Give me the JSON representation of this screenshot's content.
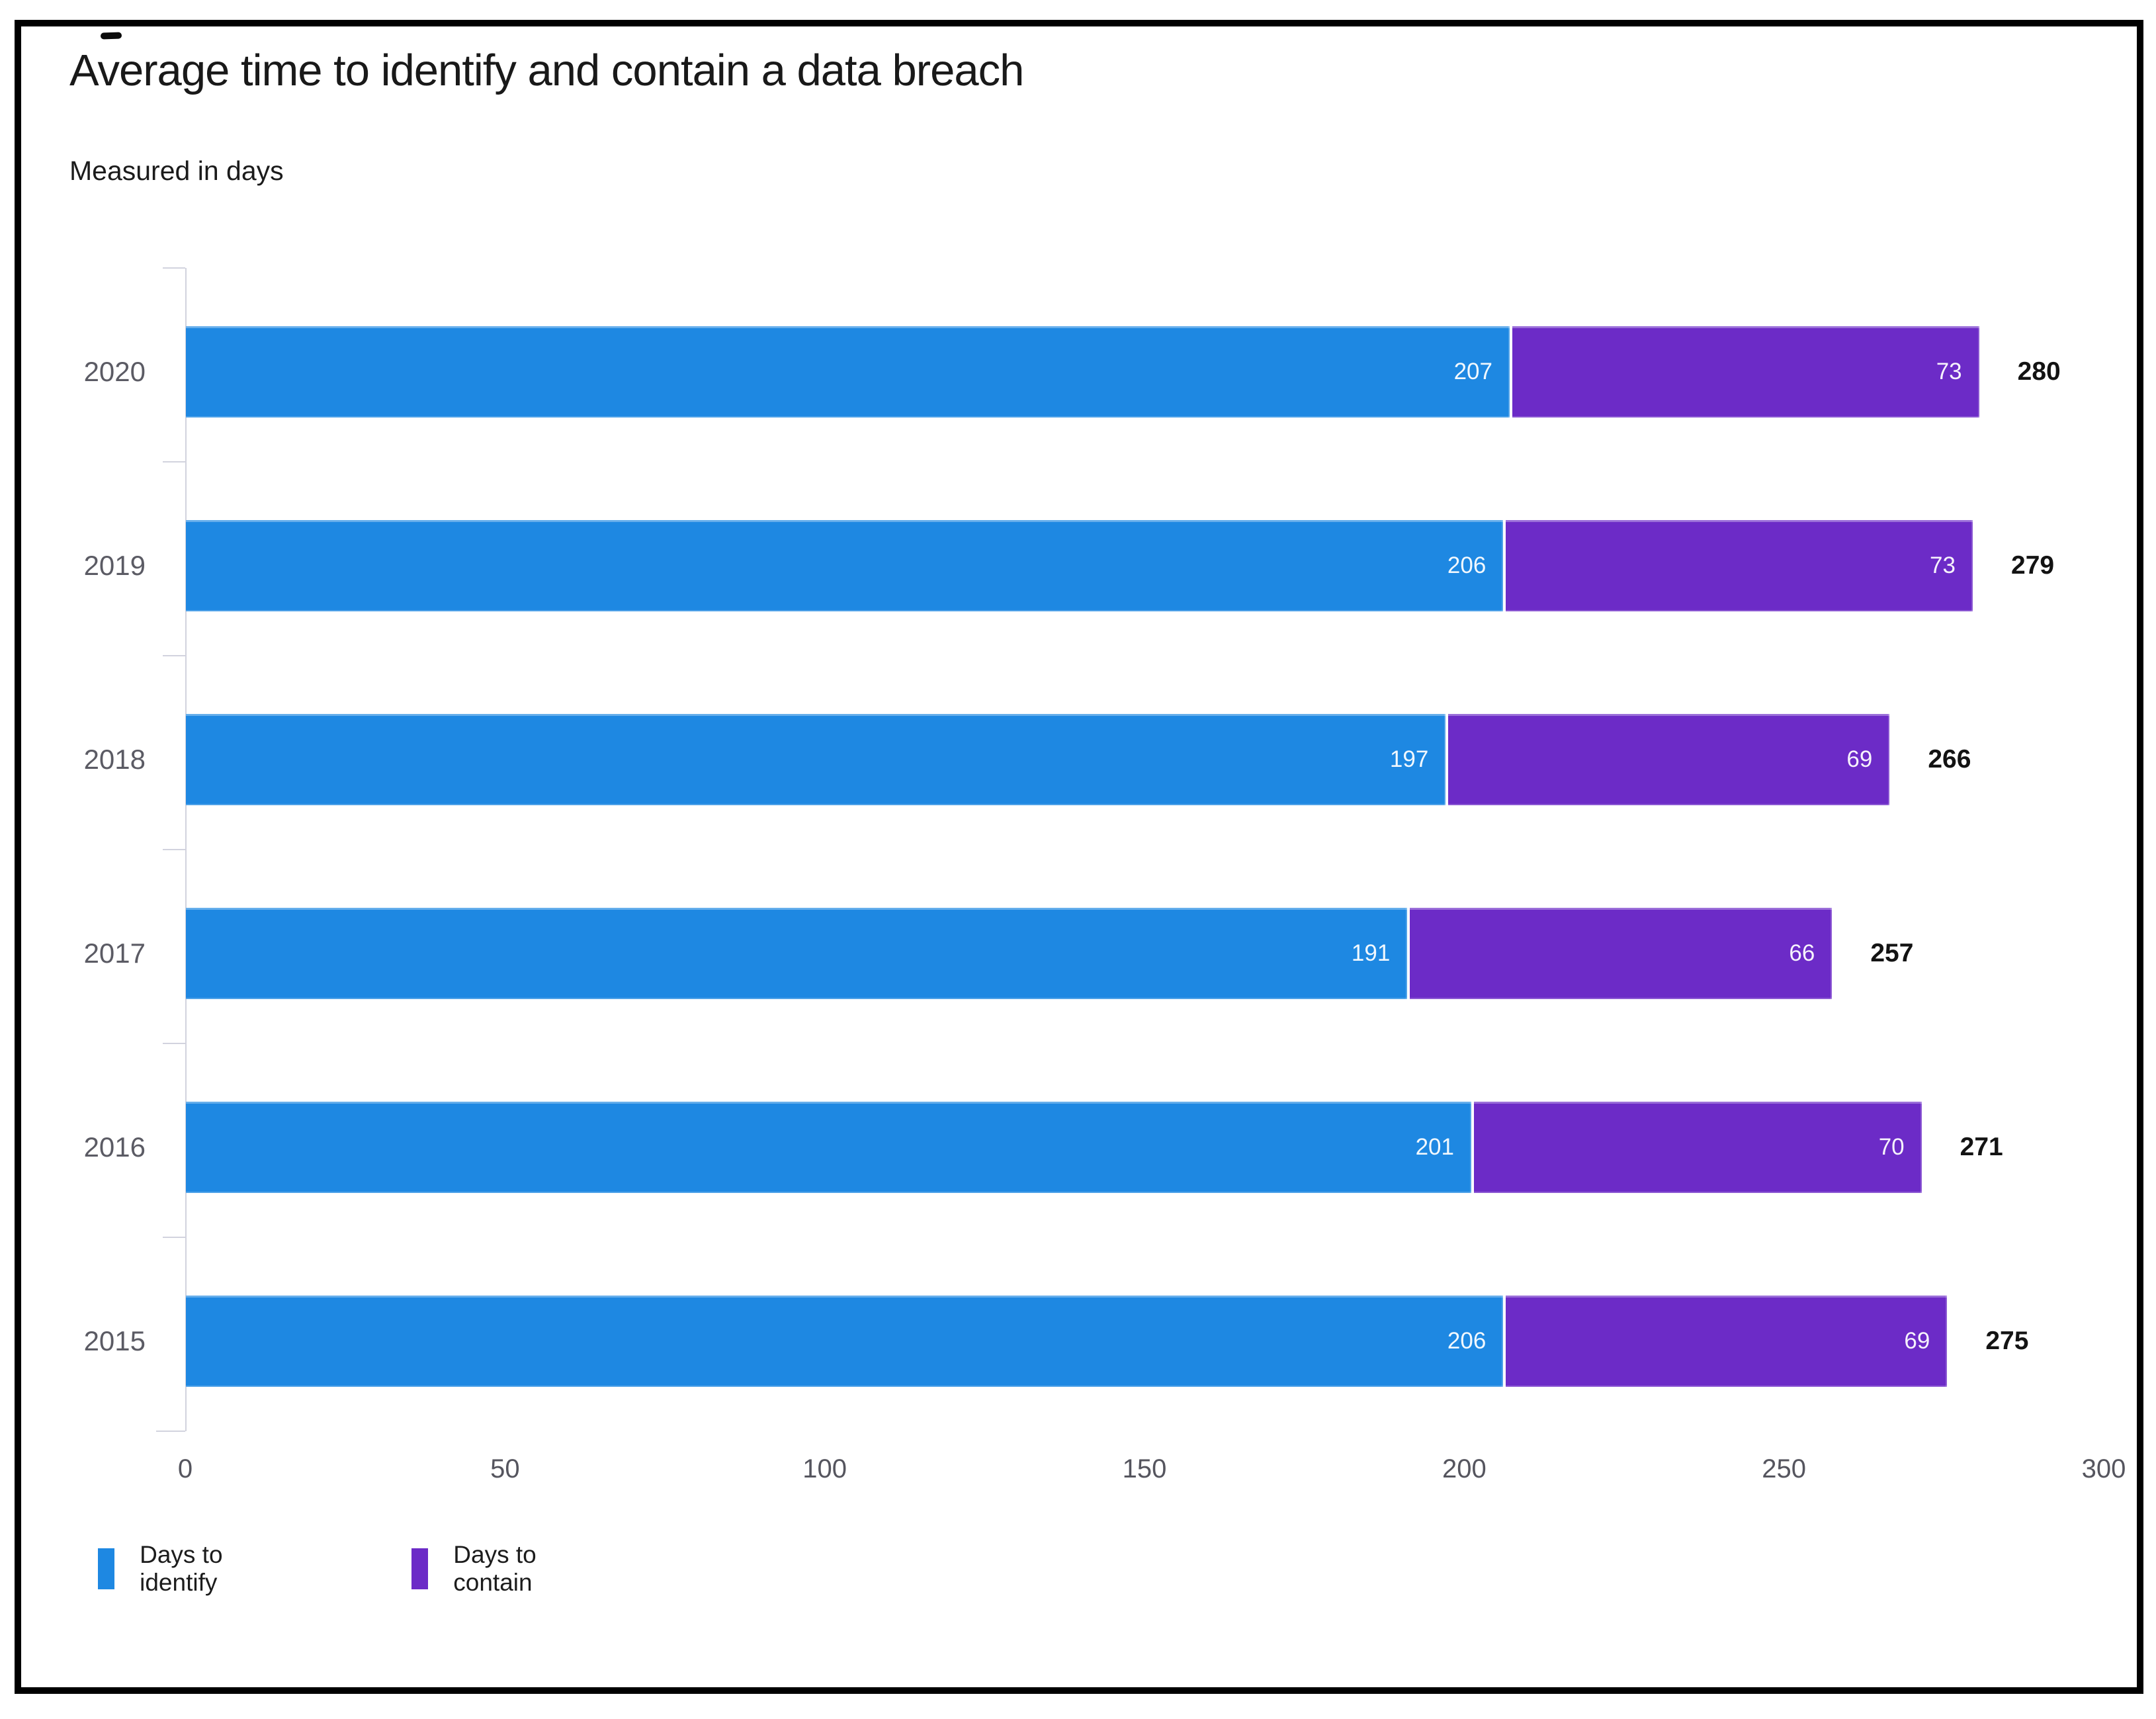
{
  "page": {
    "title": "Average time to identify and contain a data breach",
    "subtitle": "Measured in days"
  },
  "chart_data": {
    "type": "bar",
    "orientation": "horizontal",
    "stacked": true,
    "title": "Average time to identify and contain a data breach",
    "subtitle": "Measured in days",
    "unit": "days",
    "categories": [
      "2020",
      "2019",
      "2018",
      "2017",
      "2016",
      "2015"
    ],
    "series": [
      {
        "name": "Days to identify",
        "color": "#1e88e2",
        "values": [
          207,
          206,
          197,
          191,
          201,
          206
        ]
      },
      {
        "name": "Days to contain",
        "color": "#6c2bc7",
        "values": [
          73,
          73,
          69,
          66,
          70,
          69
        ]
      }
    ],
    "totals": [
      280,
      279,
      266,
      257,
      271,
      275
    ],
    "x_ticks": [
      0,
      50,
      100,
      150,
      200,
      250,
      300
    ],
    "xlim": [
      0,
      300
    ],
    "grid": false,
    "legend_position": "bottom-left"
  },
  "legend": {
    "items": [
      {
        "label": "Days to identify"
      },
      {
        "label": "Days to contain"
      }
    ]
  },
  "colors": {
    "identify": "#1e88e2",
    "contain": "#6c2bc7",
    "axis_line": "#d2d3de",
    "tick_label": "#55555e",
    "year_label": "#5b5b64",
    "total_label": "#131313",
    "frame": "#000000"
  }
}
